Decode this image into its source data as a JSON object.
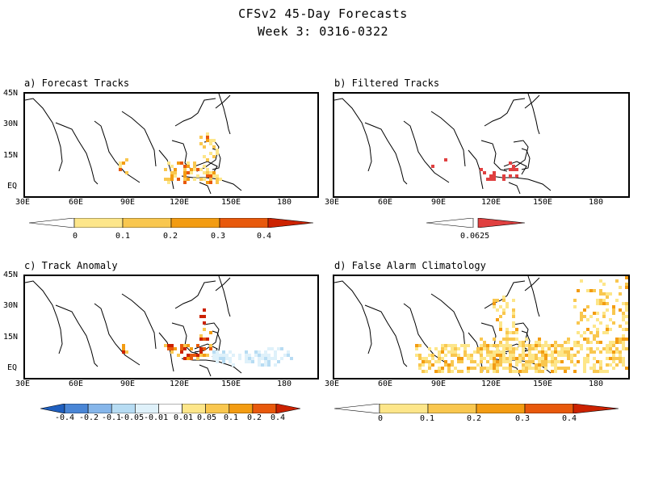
{
  "title": {
    "line1": "CFSv2 45-Day Forecasts",
    "line2": "Week 3: 0316-0322"
  },
  "axes": {
    "lat_labels": [
      "45N",
      "30N",
      "15N",
      "EQ"
    ],
    "lon_labels": [
      "30E",
      "60E",
      "90E",
      "120E",
      "150E",
      "180"
    ]
  },
  "panels": [
    {
      "title": "a) Forecast Tracks",
      "colorbar": {
        "labels": [
          "0",
          "0.1",
          "0.2",
          "0.3",
          "0.4"
        ],
        "colors": [
          "#ffffff",
          "#fde68a",
          "#f9c74f",
          "#f39c12",
          "#e8590c",
          "#cc2200"
        ]
      }
    },
    {
      "title": "b) Filtered Tracks",
      "colorbar": {
        "labels": [
          "0.0625"
        ],
        "colors": [
          "#ffffff",
          "#e04040"
        ]
      }
    },
    {
      "title": "c) Track Anomaly",
      "colorbar": {
        "labels": [
          "-0.4",
          "-0.2",
          "-0.1",
          "-0.05",
          "-0.01",
          "0.01",
          "0.05",
          "0.1",
          "0.2",
          "0.4"
        ],
        "colors": [
          "#1f5fbf",
          "#4a86d6",
          "#86b6ea",
          "#b7dcf3",
          "#dff1fa",
          "#ffffff",
          "#fde68a",
          "#f9c74f",
          "#f39c12",
          "#e8590c",
          "#cc2200"
        ]
      }
    },
    {
      "title": "d) False Alarm Climatology",
      "colorbar": {
        "labels": [
          "0",
          "0.1",
          "0.2",
          "0.3",
          "0.4"
        ],
        "colors": [
          "#ffffff",
          "#fde68a",
          "#f9c74f",
          "#f39c12",
          "#e8590c",
          "#cc2200"
        ]
      }
    }
  ]
}
